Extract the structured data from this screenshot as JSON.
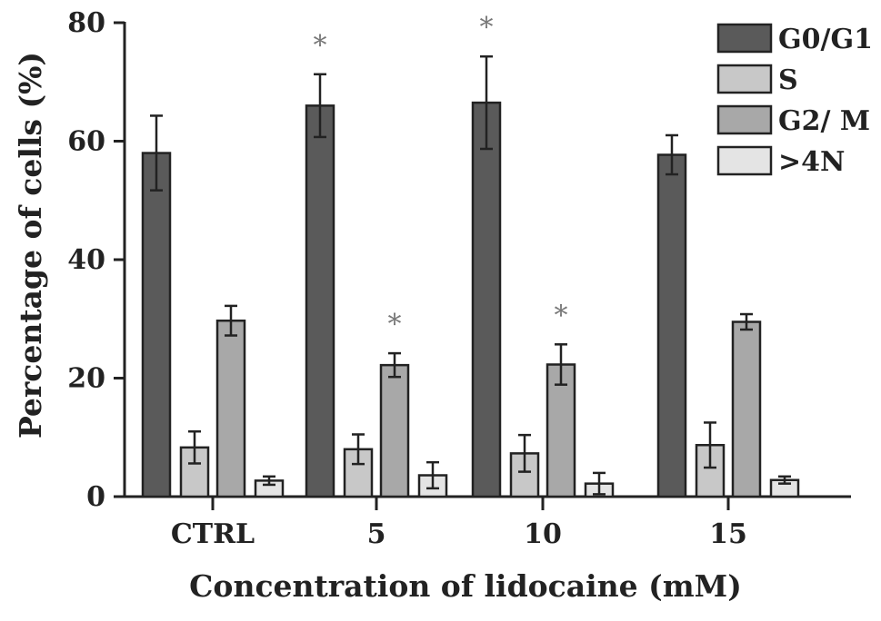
{
  "chart_data": {
    "type": "bar",
    "title": "",
    "xlabel": "Concentration of lidocaine (mM)",
    "ylabel": "Percentage of cells (%)",
    "ylim": [
      0,
      80
    ],
    "yticks": [
      "0",
      "20",
      "40",
      "60",
      "80"
    ],
    "categories": [
      "CTRL",
      "5",
      "10",
      "15"
    ],
    "legend_position": "top-right",
    "significance_marker": "*",
    "series": [
      {
        "name": "G0/G1",
        "color": "#5a5a5a",
        "values": [
          58,
          66,
          66.5,
          57.7
        ],
        "errors": [
          6.3,
          5.3,
          7.8,
          3.3
        ],
        "significant": [
          false,
          true,
          true,
          false
        ]
      },
      {
        "name": "S",
        "color": "#c8c8c8",
        "values": [
          8.3,
          8,
          7.3,
          8.7
        ],
        "errors": [
          2.7,
          2.5,
          3.1,
          3.8
        ],
        "significant": [
          false,
          false,
          false,
          false
        ]
      },
      {
        "name": "G2/ M",
        "color": "#a8a8a8",
        "values": [
          29.7,
          22.2,
          22.3,
          29.5
        ],
        "errors": [
          2.5,
          2.0,
          3.4,
          1.3
        ],
        "significant": [
          false,
          true,
          true,
          false
        ]
      },
      {
        "name": ">4N",
        "color": "#e4e4e4",
        "values": [
          2.7,
          3.6,
          2.2,
          2.8
        ],
        "errors": [
          0.7,
          2.2,
          1.8,
          0.6
        ],
        "significant": [
          false,
          false,
          false,
          false
        ]
      }
    ]
  }
}
